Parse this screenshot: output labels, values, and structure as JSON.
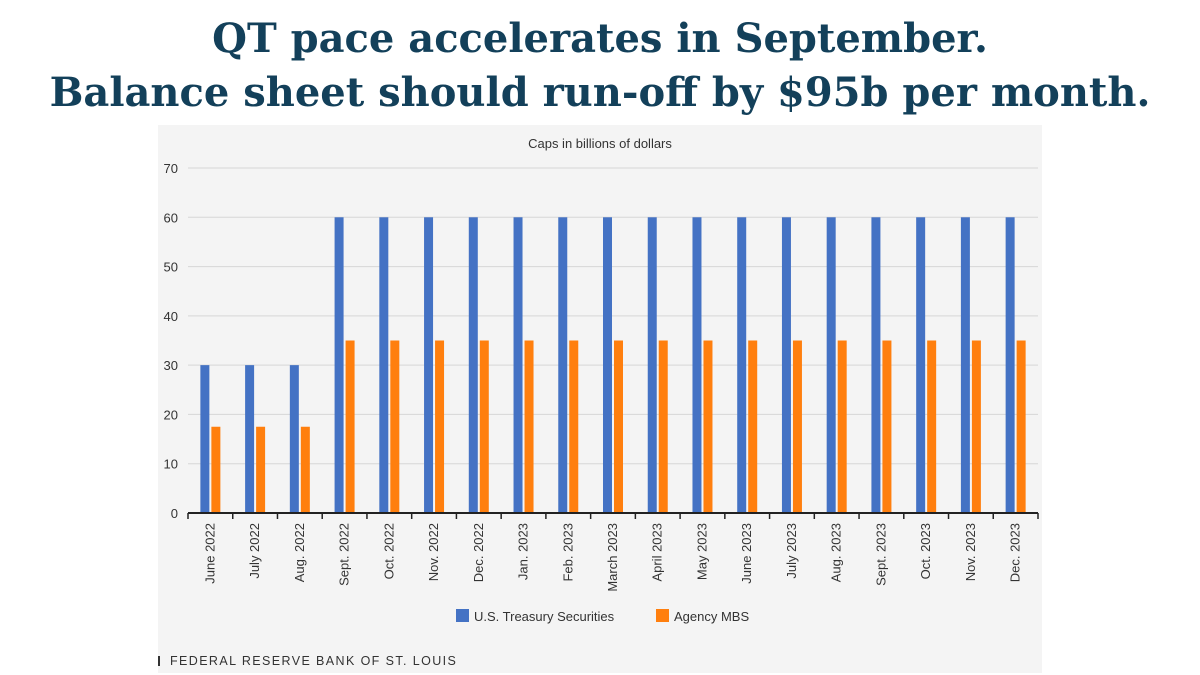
{
  "headline": {
    "line1": "QT pace accelerates in September.",
    "line2": "Balance sheet should run-off by $95b per month."
  },
  "source": "FEDERAL RESERVE BANK OF ST. LOUIS",
  "chart_data": {
    "type": "bar",
    "title": "Caps in billions of dollars",
    "xlabel": "",
    "ylabel": "",
    "ylim": [
      0,
      70
    ],
    "yticks": [
      0,
      10,
      20,
      30,
      40,
      50,
      60,
      70
    ],
    "grid": true,
    "legend_position": "bottom-center",
    "categories": [
      "June 2022",
      "July 2022",
      "Aug. 2022",
      "Sept. 2022",
      "Oct. 2022",
      "Nov. 2022",
      "Dec. 2022",
      "Jan. 2023",
      "Feb. 2023",
      "March 2023",
      "April 2023",
      "May 2023",
      "June 2023",
      "July 2023",
      "Aug. 2023",
      "Sept. 2023",
      "Oct. 2023",
      "Nov. 2023",
      "Dec. 2023"
    ],
    "series": [
      {
        "name": "U.S. Treasury Securities",
        "color": "#4472c4",
        "values": [
          30,
          30,
          30,
          60,
          60,
          60,
          60,
          60,
          60,
          60,
          60,
          60,
          60,
          60,
          60,
          60,
          60,
          60,
          60
        ]
      },
      {
        "name": "Agency MBS",
        "color": "#ff7f0e",
        "values": [
          17.5,
          17.5,
          17.5,
          35,
          35,
          35,
          35,
          35,
          35,
          35,
          35,
          35,
          35,
          35,
          35,
          35,
          35,
          35,
          35
        ]
      }
    ]
  }
}
